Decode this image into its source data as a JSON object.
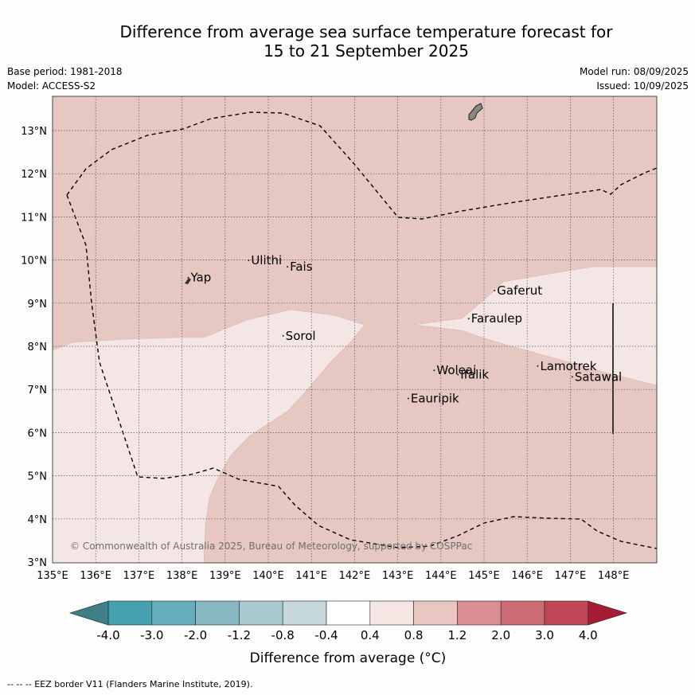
{
  "header": {
    "title_line1": "Difference from average sea surface temperature forecast for",
    "title_line2": "15 to 21 September 2025",
    "base_period": "Base period: 1981-2018",
    "model": "Model: ACCESS-S2",
    "model_run": "Model run: 08/09/2025",
    "issued": "Issued: 10/09/2025"
  },
  "map": {
    "lon_ticks": [
      "135°E",
      "136°E",
      "137°E",
      "138°E",
      "139°E",
      "140°E",
      "141°E",
      "142°E",
      "143°E",
      "144°E",
      "145°E",
      "146°E",
      "147°E",
      "148°E"
    ],
    "lat_ticks": [
      "3°N",
      "4°N",
      "5°N",
      "6°N",
      "7°N",
      "8°N",
      "9°N",
      "10°N",
      "11°N",
      "12°N",
      "13°N"
    ],
    "places": [
      {
        "name": "Yap",
        "lon": 138.2,
        "lat": 9.5
      },
      {
        "name": "Ulithi",
        "lon": 139.6,
        "lat": 9.9
      },
      {
        "name": "Fais",
        "lon": 140.5,
        "lat": 9.75
      },
      {
        "name": "Gaferut",
        "lon": 145.3,
        "lat": 9.2
      },
      {
        "name": "Faraulep",
        "lon": 144.7,
        "lat": 8.55
      },
      {
        "name": "Sorol",
        "lon": 140.4,
        "lat": 8.15
      },
      {
        "name": "Woleai",
        "lon": 143.9,
        "lat": 7.35
      },
      {
        "name": "Ifalik",
        "lon": 144.45,
        "lat": 7.25
      },
      {
        "name": "Lamotrek",
        "lon": 146.3,
        "lat": 7.45
      },
      {
        "name": "Satawal",
        "lon": 147.1,
        "lat": 7.2
      },
      {
        "name": "Eauripik",
        "lon": 143.3,
        "lat": 6.7
      }
    ],
    "copyright": "© Commonwealth of Australia 2025, Bureau of Meteorology, supported by COSPPac"
  },
  "colorbar": {
    "labels": [
      "-4.0",
      "-3.0",
      "-2.0",
      "-1.2",
      "-0.8",
      "-0.4",
      "0.4",
      "0.8",
      "1.2",
      "2.0",
      "3.0",
      "4.0"
    ],
    "colors": [
      "#45a0b0",
      "#66aebb",
      "#88b8c2",
      "#a8c9ce",
      "#c6d8db",
      "#ffffff",
      "#f5e6e4",
      "#e8c6c1",
      "#d98e93",
      "#cd6b74",
      "#bf4656"
    ],
    "low_color": "#3f7f88",
    "high_color": "#a51c35",
    "label": "Difference from average (°C)"
  },
  "footnote": "--  --  -- EEZ border V11 (Flanders Marine Institute, 2019)."
}
